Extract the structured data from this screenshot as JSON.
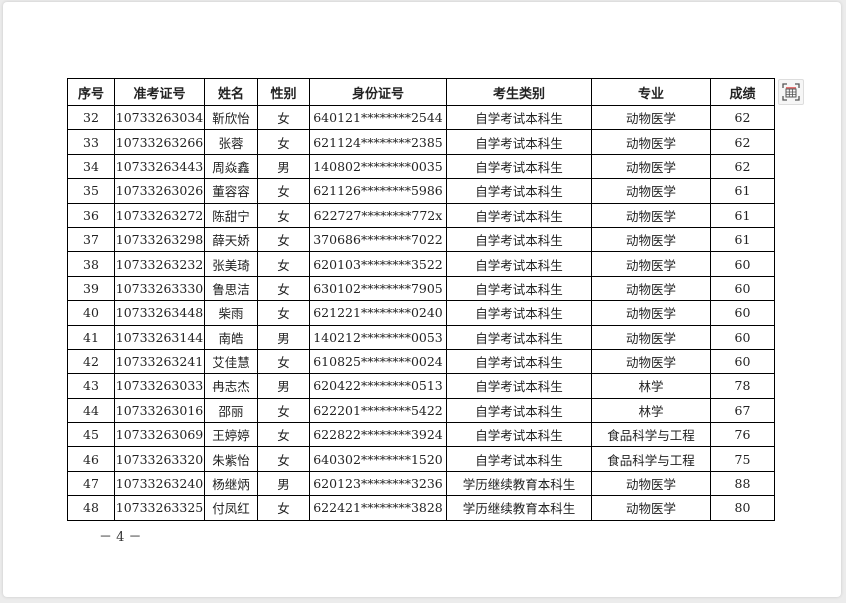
{
  "table": {
    "headers": [
      "序号",
      "准考证号",
      "姓名",
      "性别",
      "身份证号",
      "考生类别",
      "专业",
      "成绩"
    ],
    "rows": [
      [
        "32",
        "10733263034",
        "靳欣怡",
        "女",
        "640121********2544",
        "自学考试本科生",
        "动物医学",
        "62"
      ],
      [
        "33",
        "10733263266",
        "张蓉",
        "女",
        "621124********2385",
        "自学考试本科生",
        "动物医学",
        "62"
      ],
      [
        "34",
        "10733263443",
        "周焱鑫",
        "男",
        "140802********0035",
        "自学考试本科生",
        "动物医学",
        "62"
      ],
      [
        "35",
        "10733263026",
        "董容容",
        "女",
        "621126********5986",
        "自学考试本科生",
        "动物医学",
        "61"
      ],
      [
        "36",
        "10733263272",
        "陈甜宁",
        "女",
        "622727********772x",
        "自学考试本科生",
        "动物医学",
        "61"
      ],
      [
        "37",
        "10733263298",
        "薛天娇",
        "女",
        "370686********7022",
        "自学考试本科生",
        "动物医学",
        "61"
      ],
      [
        "38",
        "10733263232",
        "张美琦",
        "女",
        "620103********3522",
        "自学考试本科生",
        "动物医学",
        "60"
      ],
      [
        "39",
        "10733263330",
        "鲁思洁",
        "女",
        "630102********7905",
        "自学考试本科生",
        "动物医学",
        "60"
      ],
      [
        "40",
        "10733263448",
        "柴雨",
        "女",
        "621221********0240",
        "自学考试本科生",
        "动物医学",
        "60"
      ],
      [
        "41",
        "10733263144",
        "南皓",
        "男",
        "140212********0053",
        "自学考试本科生",
        "动物医学",
        "60"
      ],
      [
        "42",
        "10733263241",
        "艾佳慧",
        "女",
        "610825********0024",
        "自学考试本科生",
        "动物医学",
        "60"
      ],
      [
        "43",
        "10733263033",
        "冉志杰",
        "男",
        "620422********0513",
        "自学考试本科生",
        "林学",
        "78"
      ],
      [
        "44",
        "10733263016",
        "邵丽",
        "女",
        "622201********5422",
        "自学考试本科生",
        "林学",
        "67"
      ],
      [
        "45",
        "10733263069",
        "王婷婷",
        "女",
        "622822********3924",
        "自学考试本科生",
        "食品科学与工程",
        "76"
      ],
      [
        "46",
        "10733263320",
        "朱紫怡",
        "女",
        "640302********1520",
        "自学考试本科生",
        "食品科学与工程",
        "75"
      ],
      [
        "47",
        "10733263240",
        "杨继炳",
        "男",
        "620123********3236",
        "学历继续教育本科生",
        "动物医学",
        "88"
      ],
      [
        "48",
        "10733263325",
        "付凤红",
        "女",
        "622421********3828",
        "学历继续教育本科生",
        "动物医学",
        "80"
      ]
    ]
  },
  "page_number": "－ 4 －",
  "toolbar": {
    "icon": "table-extract-icon"
  }
}
